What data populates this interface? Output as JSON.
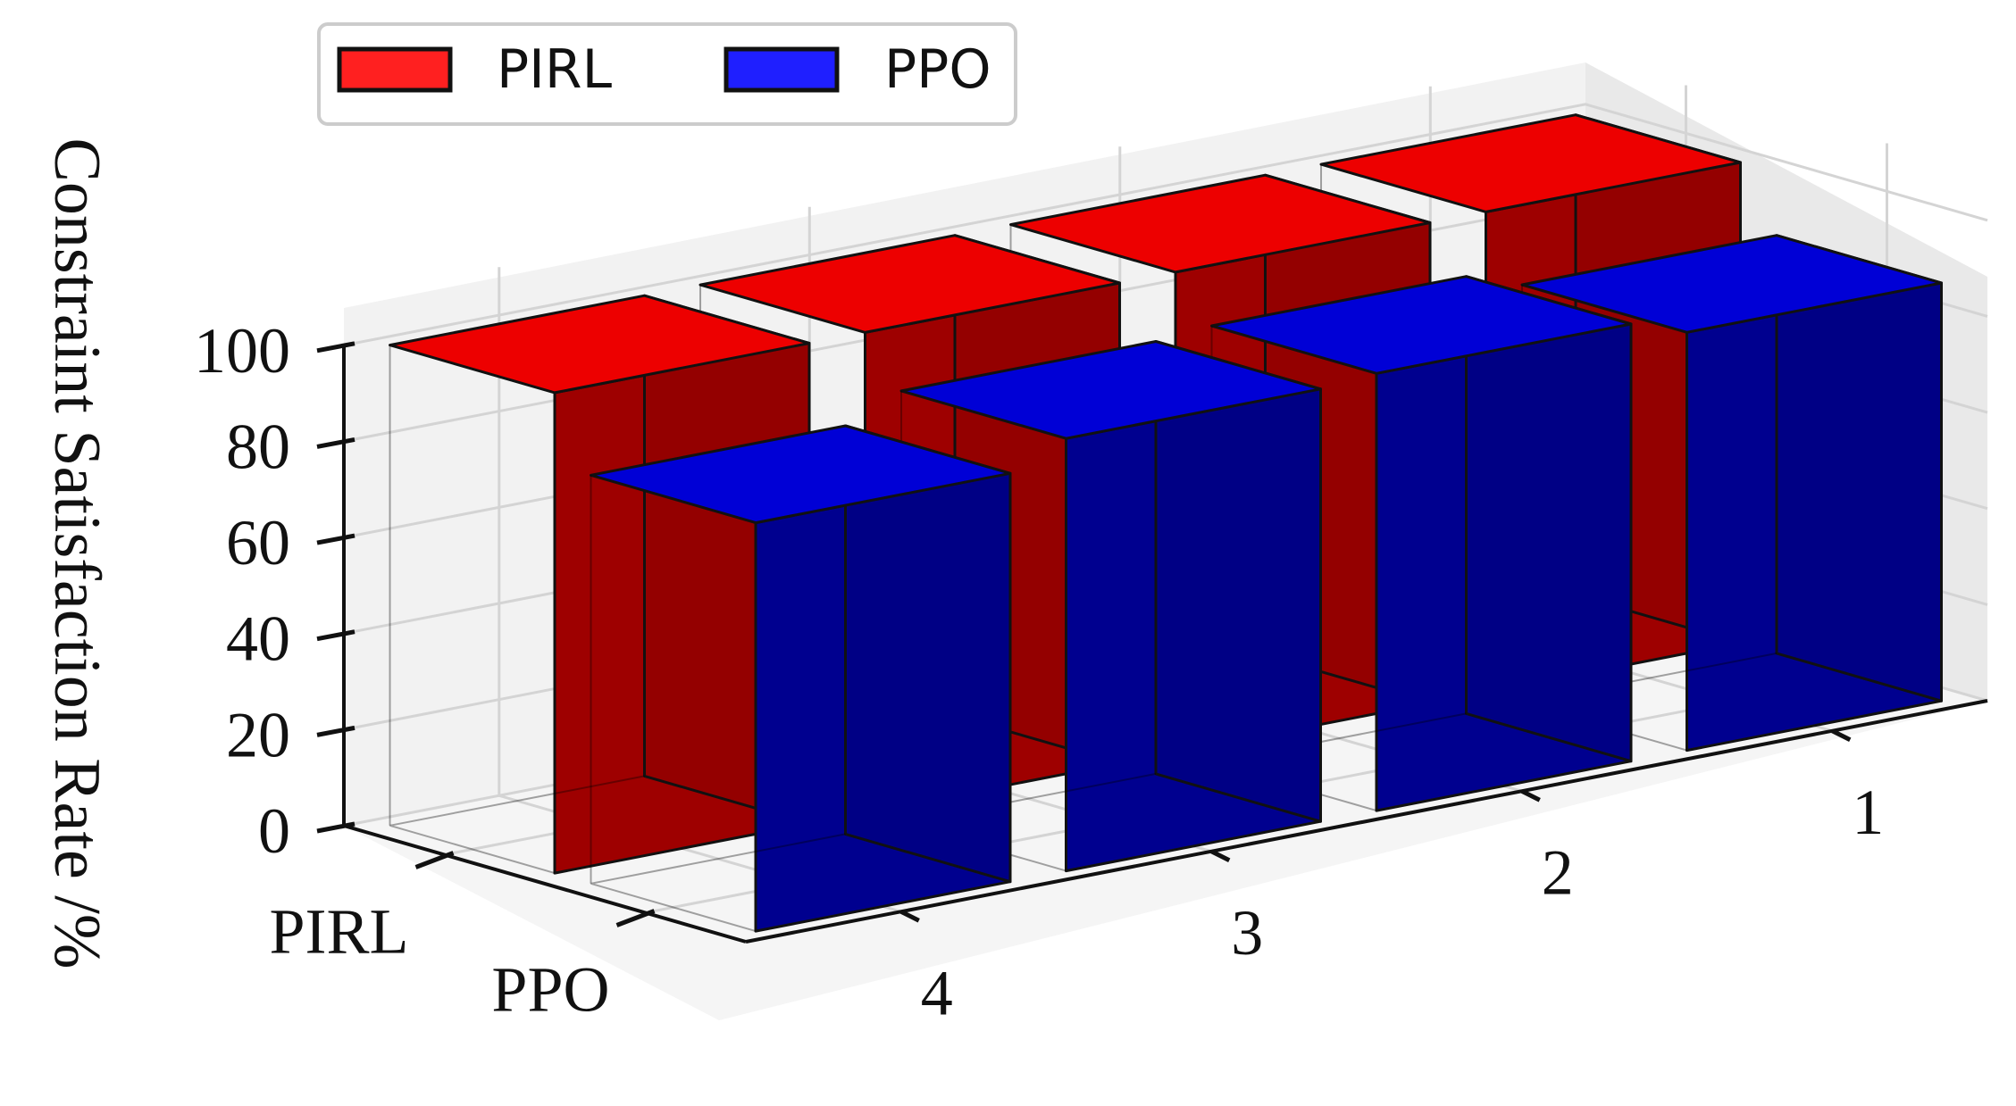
{
  "chart_data": {
    "type": "bar3d",
    "zlabel": "Constraint Satisfaction Rate /%",
    "zlim": [
      0,
      100
    ],
    "z_ticks": [
      "0",
      "20",
      "40",
      "60",
      "80",
      "100"
    ],
    "x_ticks": [
      "1",
      "2",
      "3",
      "4"
    ],
    "y_ticks": [
      "PIRL",
      "PPO"
    ],
    "legend": {
      "placement": "top-left",
      "entries": [
        {
          "label": "PIRL",
          "color": "#ff2020"
        },
        {
          "label": "PPO",
          "color": "#1f1fff"
        }
      ]
    },
    "series": [
      {
        "name": "PIRL",
        "color": "#ff0000",
        "values": [
          100,
          100,
          100,
          100
        ]
      },
      {
        "name": "PPO",
        "color": "#0000e6",
        "values": [
          87,
          91,
          90,
          85
        ]
      }
    ],
    "grid": true
  }
}
